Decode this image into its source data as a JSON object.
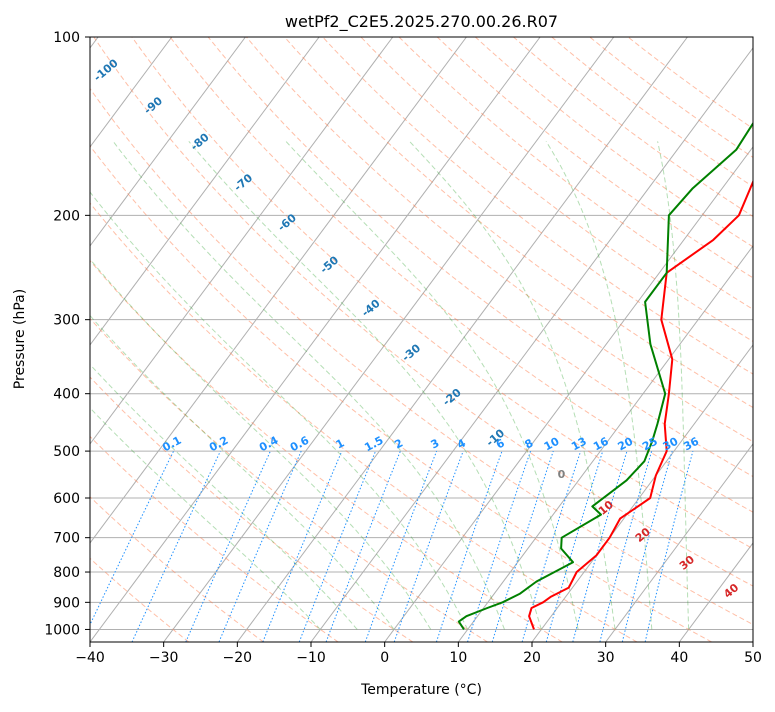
{
  "chart_data": {
    "type": "skew-t",
    "title": "wetPf2_C2E5.2025.270.00.26.R07",
    "xlabel": "Temperature (°C)",
    "ylabel": "Pressure (hPa)",
    "xlim": [
      -40,
      50
    ],
    "ylim": [
      1050,
      100
    ],
    "x_ticks": [
      -40,
      -30,
      -20,
      -10,
      0,
      10,
      20,
      30,
      40,
      50
    ],
    "y_ticks": [
      100,
      200,
      300,
      400,
      500,
      600,
      700,
      800,
      900,
      1000
    ],
    "colors": {
      "temperature": "#ff0000",
      "dewpoint": "#008000",
      "dry_adiabat": "#ff7f50",
      "moist_adiabat": "#2ca02c",
      "mixing_ratio": "#1e90ff",
      "isotherm": "#808080",
      "wetbulb_label": "#1f77b4",
      "hot_label": "#d62728",
      "grid": "#b0b0b0"
    },
    "series": [
      {
        "name": "Temperature",
        "points": [
          [
            19.0,
            1000
          ],
          [
            17.0,
            950
          ],
          [
            16.5,
            920
          ],
          [
            17.5,
            900
          ],
          [
            18.0,
            880
          ],
          [
            19.5,
            850
          ],
          [
            19.0,
            800
          ],
          [
            20.0,
            750
          ],
          [
            20.0,
            700
          ],
          [
            19.5,
            650
          ],
          [
            21.5,
            600
          ],
          [
            20.0,
            550
          ],
          [
            19.0,
            500
          ],
          [
            16.0,
            450
          ],
          [
            13.5,
            400
          ],
          [
            10.5,
            350
          ],
          [
            5.0,
            300
          ],
          [
            1.0,
            250
          ],
          [
            4.0,
            220
          ],
          [
            5.0,
            200
          ],
          [
            3.5,
            175
          ],
          [
            3.0,
            160
          ],
          [
            4.5,
            145
          ],
          [
            5.5,
            130
          ],
          [
            5.0,
            120
          ],
          [
            6.0,
            115
          ],
          [
            9.0,
            108
          ],
          [
            11.5,
            100
          ]
        ]
      },
      {
        "name": "Dewpoint",
        "points": [
          [
            9.5,
            1000
          ],
          [
            8.0,
            970
          ],
          [
            8.5,
            950
          ],
          [
            10.5,
            920
          ],
          [
            12.0,
            900
          ],
          [
            13.5,
            870
          ],
          [
            14.5,
            830
          ],
          [
            17.5,
            770
          ],
          [
            14.5,
            730
          ],
          [
            13.5,
            700
          ],
          [
            16.5,
            640
          ],
          [
            14.5,
            620
          ],
          [
            16.5,
            560
          ],
          [
            17.0,
            520
          ],
          [
            16.0,
            480
          ],
          [
            15.0,
            450
          ],
          [
            13.0,
            400
          ],
          [
            6.0,
            330
          ],
          [
            1.0,
            280
          ],
          [
            1.0,
            250
          ],
          [
            -4.5,
            200
          ],
          [
            -4.0,
            180
          ],
          [
            -2.0,
            155
          ],
          [
            -2.5,
            135
          ],
          [
            -0.5,
            120
          ],
          [
            2.0,
            108
          ],
          [
            3.0,
            100
          ]
        ]
      }
    ],
    "mixing_ratio_labels": [
      "0.1",
      "0.2",
      "0.4",
      "0.6",
      "1",
      "1.5",
      "2",
      "3",
      "4",
      "6",
      "8",
      "10",
      "13",
      "16",
      "20",
      "25",
      "30",
      "36"
    ],
    "wetbulb_labels": [
      "-100",
      "-90",
      "-80",
      "-70",
      "-60",
      "-50",
      "-40",
      "-30",
      "-20",
      "-10"
    ],
    "hot_labels": [
      "10",
      "20",
      "30",
      "40"
    ],
    "zero_label": "0"
  }
}
